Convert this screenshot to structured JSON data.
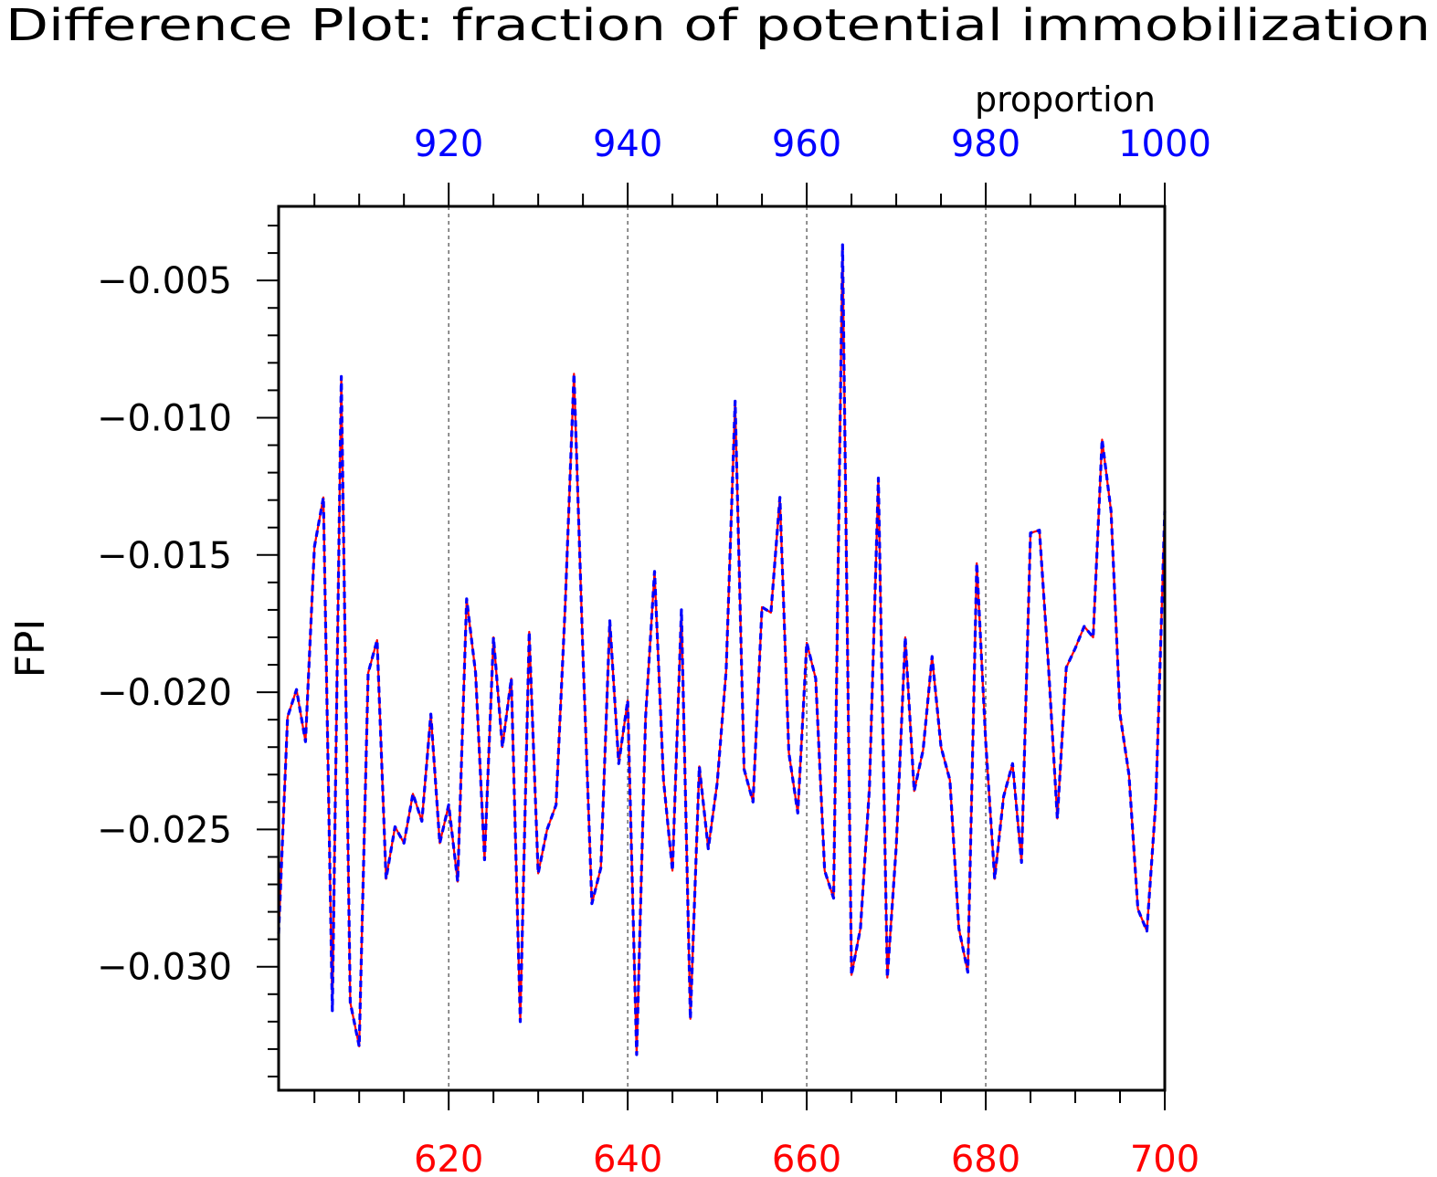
{
  "chart_data": {
    "type": "line",
    "title": "Difference Plot: fraction of potential immobilization",
    "ylabel": "FPI",
    "top_axis_label": "proportion",
    "bottom_axis": {
      "range": [
        601,
        700
      ],
      "major_ticks": [
        620,
        640,
        660,
        680,
        700
      ],
      "tick_labels": [
        "620",
        "640",
        "660",
        "680",
        "700"
      ],
      "color": "#ff0000"
    },
    "top_axis": {
      "range": [
        901,
        1000
      ],
      "major_ticks": [
        920,
        940,
        960,
        980,
        1000
      ],
      "tick_labels": [
        "920",
        "940",
        "960",
        "980",
        "1000"
      ],
      "color": "#0000ff"
    },
    "y_axis": {
      "range": [
        -0.0345,
        -0.0023
      ],
      "major_ticks": [
        -0.005,
        -0.01,
        -0.015,
        -0.02,
        -0.025,
        -0.03
      ],
      "tick_labels": [
        "−0.005",
        "−0.010",
        "−0.015",
        "−0.020",
        "−0.025",
        "−0.030"
      ]
    },
    "grid": "vertical dashed at major x ticks",
    "x": [
      601,
      602,
      603,
      604,
      605,
      606,
      607,
      608,
      609,
      610,
      611,
      612,
      613,
      614,
      615,
      616,
      617,
      618,
      619,
      620,
      621,
      622,
      623,
      624,
      625,
      626,
      627,
      628,
      629,
      630,
      631,
      632,
      633,
      634,
      635,
      636,
      637,
      638,
      639,
      640,
      641,
      642,
      643,
      644,
      645,
      646,
      647,
      648,
      649,
      650,
      651,
      652,
      653,
      654,
      655,
      656,
      657,
      658,
      659,
      660,
      661,
      662,
      663,
      664,
      665,
      666,
      667,
      668,
      669,
      670,
      671,
      672,
      673,
      674,
      675,
      676,
      677,
      678,
      679,
      680,
      681,
      682,
      683,
      684,
      685,
      686,
      687,
      688,
      689,
      690,
      691,
      692,
      693,
      694,
      695,
      696,
      697,
      698,
      699,
      700
    ],
    "series": [
      {
        "color": "#ff0000",
        "style": "solid",
        "values": [
          -0.0288,
          -0.0209,
          -0.0199,
          -0.0218,
          -0.0147,
          -0.0129,
          -0.0316,
          -0.0085,
          -0.0313,
          -0.0329,
          -0.0193,
          -0.0181,
          -0.0268,
          -0.0249,
          -0.0255,
          -0.0237,
          -0.0247,
          -0.0208,
          -0.0255,
          -0.0241,
          -0.0269,
          -0.0166,
          -0.0193,
          -0.0261,
          -0.018,
          -0.022,
          -0.0195,
          -0.032,
          -0.0178,
          -0.0266,
          -0.025,
          -0.0241,
          -0.017,
          -0.0084,
          -0.0186,
          -0.0277,
          -0.0264,
          -0.0174,
          -0.0226,
          -0.0203,
          -0.0332,
          -0.0209,
          -0.0156,
          -0.0232,
          -0.0265,
          -0.017,
          -0.0319,
          -0.0227,
          -0.0257,
          -0.0233,
          -0.0192,
          -0.0094,
          -0.0228,
          -0.024,
          -0.0169,
          -0.0171,
          -0.0129,
          -0.0222,
          -0.0244,
          -0.0182,
          -0.0195,
          -0.0265,
          -0.0275,
          -0.0037,
          -0.0303,
          -0.0286,
          -0.0235,
          -0.0122,
          -0.0304,
          -0.0256,
          -0.018,
          -0.0236,
          -0.0221,
          -0.0187,
          -0.022,
          -0.0232,
          -0.0286,
          -0.0302,
          -0.0153,
          -0.0218,
          -0.0268,
          -0.0238,
          -0.0226,
          -0.0262,
          -0.0142,
          -0.0141,
          -0.019,
          -0.0246,
          -0.0191,
          -0.0184,
          -0.0176,
          -0.018,
          -0.0108,
          -0.0134,
          -0.0208,
          -0.023,
          -0.0279,
          -0.0287,
          -0.024,
          -0.0134
        ]
      },
      {
        "color": "#0000ff",
        "style": "dashed",
        "values": [
          -0.0288,
          -0.0209,
          -0.0199,
          -0.0218,
          -0.0147,
          -0.0129,
          -0.0316,
          -0.0085,
          -0.0313,
          -0.0329,
          -0.0193,
          -0.0181,
          -0.0268,
          -0.0249,
          -0.0255,
          -0.0237,
          -0.0247,
          -0.0208,
          -0.0255,
          -0.0241,
          -0.0269,
          -0.0166,
          -0.0193,
          -0.0261,
          -0.018,
          -0.022,
          -0.0195,
          -0.032,
          -0.0178,
          -0.0266,
          -0.025,
          -0.0241,
          -0.017,
          -0.0084,
          -0.0186,
          -0.0277,
          -0.0264,
          -0.0174,
          -0.0226,
          -0.0203,
          -0.0332,
          -0.0209,
          -0.0156,
          -0.0232,
          -0.0265,
          -0.017,
          -0.0319,
          -0.0227,
          -0.0257,
          -0.0233,
          -0.0192,
          -0.0094,
          -0.0228,
          -0.024,
          -0.0169,
          -0.0171,
          -0.0129,
          -0.0222,
          -0.0244,
          -0.0182,
          -0.0195,
          -0.0265,
          -0.0275,
          -0.0037,
          -0.0303,
          -0.0286,
          -0.0235,
          -0.0122,
          -0.0304,
          -0.0256,
          -0.018,
          -0.0236,
          -0.0221,
          -0.0187,
          -0.022,
          -0.0232,
          -0.0286,
          -0.0302,
          -0.0153,
          -0.0218,
          -0.0268,
          -0.0238,
          -0.0226,
          -0.0262,
          -0.0142,
          -0.0141,
          -0.019,
          -0.0246,
          -0.0191,
          -0.0184,
          -0.0176,
          -0.018,
          -0.0108,
          -0.0134,
          -0.0208,
          -0.023,
          -0.0279,
          -0.0287,
          -0.024,
          -0.0134
        ]
      }
    ]
  }
}
